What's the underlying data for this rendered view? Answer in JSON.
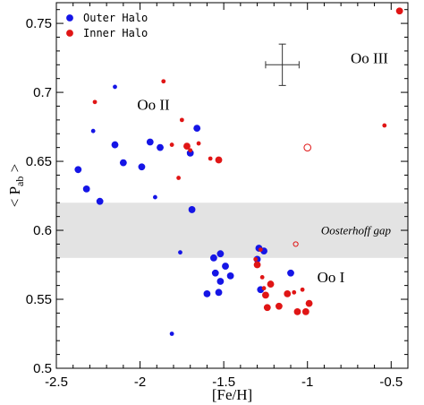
{
  "chart_data": {
    "type": "scatter",
    "xlabel": "[Fe/H]",
    "ylabel": "< P",
    "ylabel_sub": "ab",
    "ylabel_close": " >",
    "xlim": [
      -2.5,
      -0.4
    ],
    "ylim": [
      0.5,
      0.765
    ],
    "xticks": [
      -2.5,
      -2,
      -1.5,
      -1,
      -0.5
    ],
    "xtick_labels": [
      "-2.5",
      "-2",
      "-1.5",
      "-1",
      "-0.5"
    ],
    "yticks": [
      0.5,
      0.55,
      0.6,
      0.65,
      0.7,
      0.75
    ],
    "ytick_labels": [
      "0.5",
      "0.55",
      "0.6",
      "0.65",
      "0.7",
      "0.75"
    ],
    "grid": false,
    "legend_position": "top-left",
    "gap_band": {
      "y": [
        0.58,
        0.62
      ],
      "label": "Oosterhoff gap",
      "color": "#e3e3e3"
    },
    "region_labels": [
      {
        "text": "Oo II",
        "x": -1.92,
        "y": 0.6875
      },
      {
        "text": "Oo I",
        "x": -0.86,
        "y": 0.5625
      },
      {
        "text": "Oo III",
        "x": -0.63,
        "y": 0.721
      }
    ],
    "error_bar": {
      "x": -1.15,
      "y": 0.72,
      "xerr": 0.1,
      "yerr": 0.015
    },
    "series": [
      {
        "name": "Outer Halo",
        "color": "#1515e6",
        "marker": "filled",
        "points": [
          [
            -2.37,
            0.644,
            6
          ],
          [
            -2.32,
            0.63,
            5
          ],
          [
            -2.28,
            0.672,
            3
          ],
          [
            -2.24,
            0.621,
            5
          ],
          [
            -2.15,
            0.704,
            3
          ],
          [
            -2.15,
            0.662,
            5
          ],
          [
            -2.1,
            0.649,
            5
          ],
          [
            -1.99,
            0.646,
            5
          ],
          [
            -1.94,
            0.664,
            5
          ],
          [
            -1.91,
            0.624,
            3
          ],
          [
            -1.88,
            0.66,
            5
          ],
          [
            -1.81,
            0.525,
            3
          ],
          [
            -1.76,
            0.584,
            3
          ],
          [
            -1.7,
            0.656,
            5
          ],
          [
            -1.69,
            0.615,
            5
          ],
          [
            -1.66,
            0.674,
            5
          ],
          [
            -1.6,
            0.554,
            5
          ],
          [
            -1.56,
            0.58,
            5
          ],
          [
            -1.55,
            0.569,
            5
          ],
          [
            -1.53,
            0.555,
            5
          ],
          [
            -1.52,
            0.583,
            5
          ],
          [
            -1.52,
            0.563,
            5
          ],
          [
            -1.49,
            0.574,
            5
          ],
          [
            -1.46,
            0.567,
            5
          ],
          [
            -1.3,
            0.579,
            5
          ],
          [
            -1.29,
            0.587,
            5
          ],
          [
            -1.28,
            0.557,
            5
          ],
          [
            -1.26,
            0.585,
            5
          ],
          [
            -1.1,
            0.569,
            5
          ]
        ]
      },
      {
        "name": "Inner Halo",
        "color": "#e01515",
        "marker": "filled",
        "points": [
          [
            -2.27,
            0.693,
            3
          ],
          [
            -1.86,
            0.708,
            3
          ],
          [
            -1.81,
            0.662,
            3
          ],
          [
            -1.77,
            0.638,
            3
          ],
          [
            -1.75,
            0.68,
            3
          ],
          [
            -1.72,
            0.661,
            5
          ],
          [
            -1.7,
            0.658,
            3
          ],
          [
            -1.65,
            0.663,
            3
          ],
          [
            -1.58,
            0.652,
            3
          ],
          [
            -1.53,
            0.651,
            5
          ],
          [
            -1.31,
            0.579,
            3
          ],
          [
            -1.3,
            0.575,
            5
          ],
          [
            -1.28,
            0.586,
            3
          ],
          [
            -1.27,
            0.566,
            3
          ],
          [
            -1.26,
            0.558,
            3
          ],
          [
            -1.25,
            0.553,
            5
          ],
          [
            -1.24,
            0.544,
            5
          ],
          [
            -1.22,
            0.561,
            5
          ],
          [
            -1.17,
            0.545,
            5
          ],
          [
            -1.12,
            0.554,
            5
          ],
          [
            -1.08,
            0.555,
            3
          ],
          [
            -1.06,
            0.541,
            5
          ],
          [
            -1.03,
            0.557,
            3
          ],
          [
            -1.01,
            0.541,
            5
          ],
          [
            -0.99,
            0.547,
            5
          ],
          [
            -0.54,
            0.676,
            3
          ],
          [
            -0.45,
            0.759,
            5
          ]
        ]
      },
      {
        "name": "",
        "color": "#e01515",
        "marker": "open",
        "points": [
          [
            -1.0,
            0.66,
            5
          ],
          [
            -1.07,
            0.59,
            3
          ]
        ]
      }
    ]
  }
}
